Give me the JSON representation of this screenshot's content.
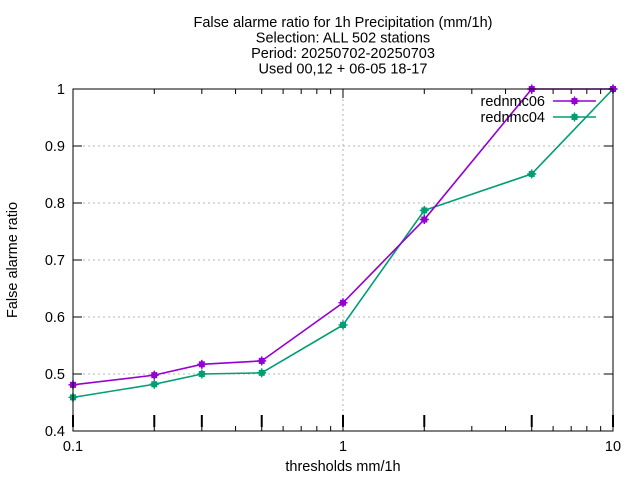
{
  "chart_data": {
    "type": "line",
    "title_lines": [
      "False alarme ratio  for 1h Precipitation (mm/1h)",
      "Selection: ALL    502 stations",
      "Period: 20250702-20250703",
      "Used 00,12 + 06-05 18-17"
    ],
    "xlabel": "thresholds mm/1h",
    "ylabel": "False alarme ratio",
    "x_scale": "log",
    "xlim": [
      0.1,
      10
    ],
    "ylim": [
      0.4,
      1.0
    ],
    "x_ticks": [
      0.1,
      1,
      10
    ],
    "x_tick_labels": [
      "0.1",
      "1",
      "10"
    ],
    "y_ticks": [
      0.4,
      0.5,
      0.6,
      0.7,
      0.8,
      0.9,
      1.0
    ],
    "y_tick_labels": [
      "0.4",
      "0.5",
      "0.6",
      "0.7",
      "0.8",
      "0.9",
      "1"
    ],
    "grid": true,
    "legend_position": "top-right",
    "x": [
      0.1,
      0.2,
      0.3,
      0.5,
      1,
      2,
      5,
      10
    ],
    "series": [
      {
        "name": "rednmc06",
        "color": "#9400d3",
        "values": [
          0.481,
          0.498,
          0.517,
          0.523,
          0.625,
          0.771,
          1.0,
          1.0
        ]
      },
      {
        "name": "rednmc04",
        "color": "#009e73",
        "values": [
          0.459,
          0.482,
          0.5,
          0.502,
          0.586,
          0.787,
          0.851,
          1.0
        ]
      }
    ]
  }
}
